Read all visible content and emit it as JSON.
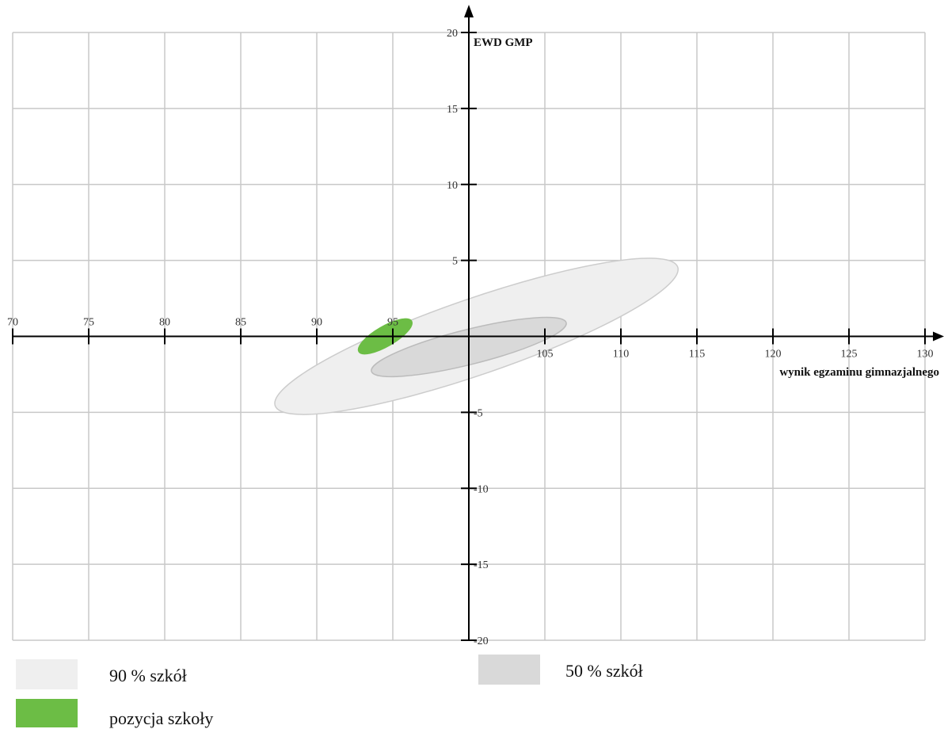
{
  "chart_data": {
    "type": "scatter",
    "xlabel": "wynik egzaminu gimnazjalnego",
    "ylabel": "EWD GMP",
    "xlim": [
      70,
      130
    ],
    "ylim": [
      -20,
      20
    ],
    "x_ticks": [
      70,
      75,
      80,
      85,
      90,
      95,
      105,
      110,
      115,
      120,
      125,
      130
    ],
    "y_ticks": [
      20,
      15,
      10,
      5,
      -5,
      -10,
      -15,
      -20
    ],
    "grid": true,
    "legend_position": "bottom",
    "regions": [
      {
        "name": "90 % szkół",
        "shape": "ellipse",
        "center": [
          100.5,
          0.0
        ],
        "rx": 14.0,
        "ry": 2.5,
        "rotation_deg": -19,
        "color": "#efefef",
        "stroke": "#cccccc"
      },
      {
        "name": "50 % szkół",
        "shape": "ellipse",
        "center": [
          100.0,
          -0.7
        ],
        "rx": 6.6,
        "ry": 1.15,
        "rotation_deg": -14,
        "color": "#d9d9d9",
        "stroke": "#bbbbbb"
      },
      {
        "name": "pozycja szkoły",
        "shape": "ellipse",
        "center": [
          94.5,
          0.0
        ],
        "rx": 2.0,
        "ry": 0.65,
        "rotation_deg": -30,
        "color": "#6cbd45",
        "stroke": "#6cbd45"
      }
    ]
  },
  "legend": {
    "items": [
      {
        "label": "90  % szkół",
        "color": "#efefef"
      },
      {
        "label": "50  % szkół",
        "color": "#d9d9d9"
      },
      {
        "label": "pozycja szkoły",
        "color": "#6cbd45"
      }
    ]
  },
  "colors": {
    "grid": "#c8c8c8",
    "axis": "#000000",
    "background": "#ffffff"
  }
}
